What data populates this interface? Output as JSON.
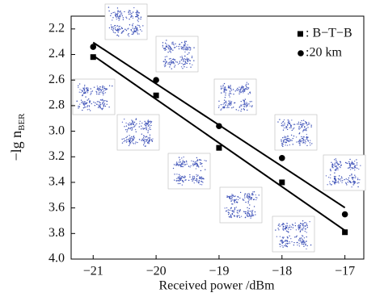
{
  "chart_data": {
    "type": "scatter",
    "xlabel": "Received power /dBm",
    "ylabel": "−lg n",
    "ylabel_sub": "BER",
    "xlim": [
      -21.35,
      -16.7
    ],
    "ylim": [
      4.0,
      2.1
    ],
    "xticks": [
      {
        "value": -21,
        "label": "−21"
      },
      {
        "value": -20,
        "label": "−20"
      },
      {
        "value": -19,
        "label": "−19"
      },
      {
        "value": -18,
        "label": "−18"
      },
      {
        "value": -17,
        "label": "−17"
      }
    ],
    "yticks": [
      2.2,
      2.4,
      2.6,
      2.8,
      {
        "value": 3,
        "label": "3.0"
      },
      3.2,
      3.4,
      3.6,
      3.8,
      {
        "value": 4,
        "label": "4.0"
      }
    ],
    "series": [
      {
        "name": ": B−T−B",
        "marker": "square",
        "color": "#000000",
        "x": [
          -21,
          -20,
          -19,
          -18,
          -17
        ],
        "values": [
          2.42,
          2.72,
          3.13,
          3.4,
          3.79
        ]
      },
      {
        "name": ":20 km",
        "marker": "circle",
        "color": "#000000",
        "x": [
          -21,
          -20,
          -19,
          -18,
          -17
        ],
        "values": [
          2.34,
          2.6,
          2.96,
          3.21,
          3.65
        ]
      }
    ]
  }
}
